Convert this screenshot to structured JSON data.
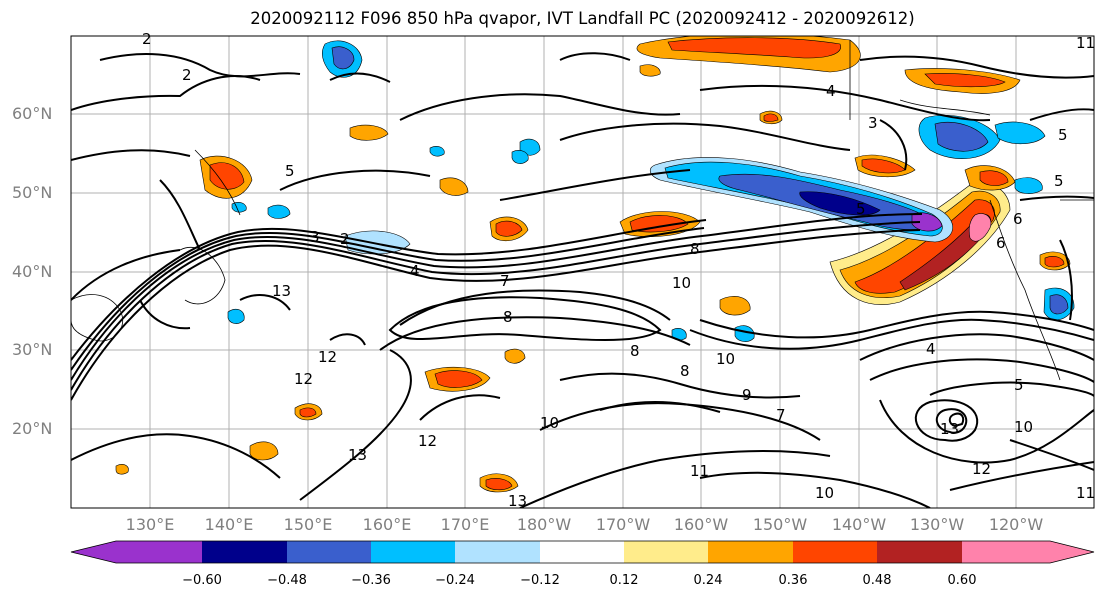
{
  "title": "2020092112 F096 850 hPa qvapor, IVT Landfall PC (2020092412 - 2020092612)",
  "lat_labels": [
    "60°N",
    "50°N",
    "40°N",
    "30°N",
    "20°N"
  ],
  "lon_labels": [
    "130°E",
    "140°E",
    "150°E",
    "160°E",
    "170°E",
    "180°W",
    "170°W",
    "160°W",
    "150°W",
    "140°W",
    "130°W",
    "120°W"
  ],
  "colorbar": {
    "colors": [
      "#9a32cd",
      "#00008b",
      "#3a5fcd",
      "#00bfff",
      "#b0e2ff",
      "#ffffff",
      "#ffec8b",
      "#ffa500",
      "#ff4500",
      "#b22222",
      "#ff82ab"
    ],
    "tick_labels": [
      "−0.60",
      "−0.48",
      "−0.36",
      "−0.24",
      "−0.12",
      "0.12",
      "0.24",
      "0.36",
      "0.48",
      "0.60"
    ],
    "levels": [
      -0.6,
      -0.48,
      -0.36,
      -0.24,
      -0.12,
      0.12,
      0.24,
      0.36,
      0.48,
      0.6
    ],
    "extend": "both"
  },
  "contour_labels": [
    "2",
    "2",
    "3",
    "2",
    "5",
    "8",
    "4",
    "7",
    "13",
    "12",
    "12",
    "8",
    "10",
    "8",
    "8",
    "10",
    "10",
    "9",
    "7",
    "11",
    "12",
    "13",
    "13",
    "10",
    "11",
    "4",
    "3",
    "5",
    "5",
    "5",
    "6",
    "6",
    "4",
    "5",
    "12",
    "11",
    "10",
    "13"
  ]
}
